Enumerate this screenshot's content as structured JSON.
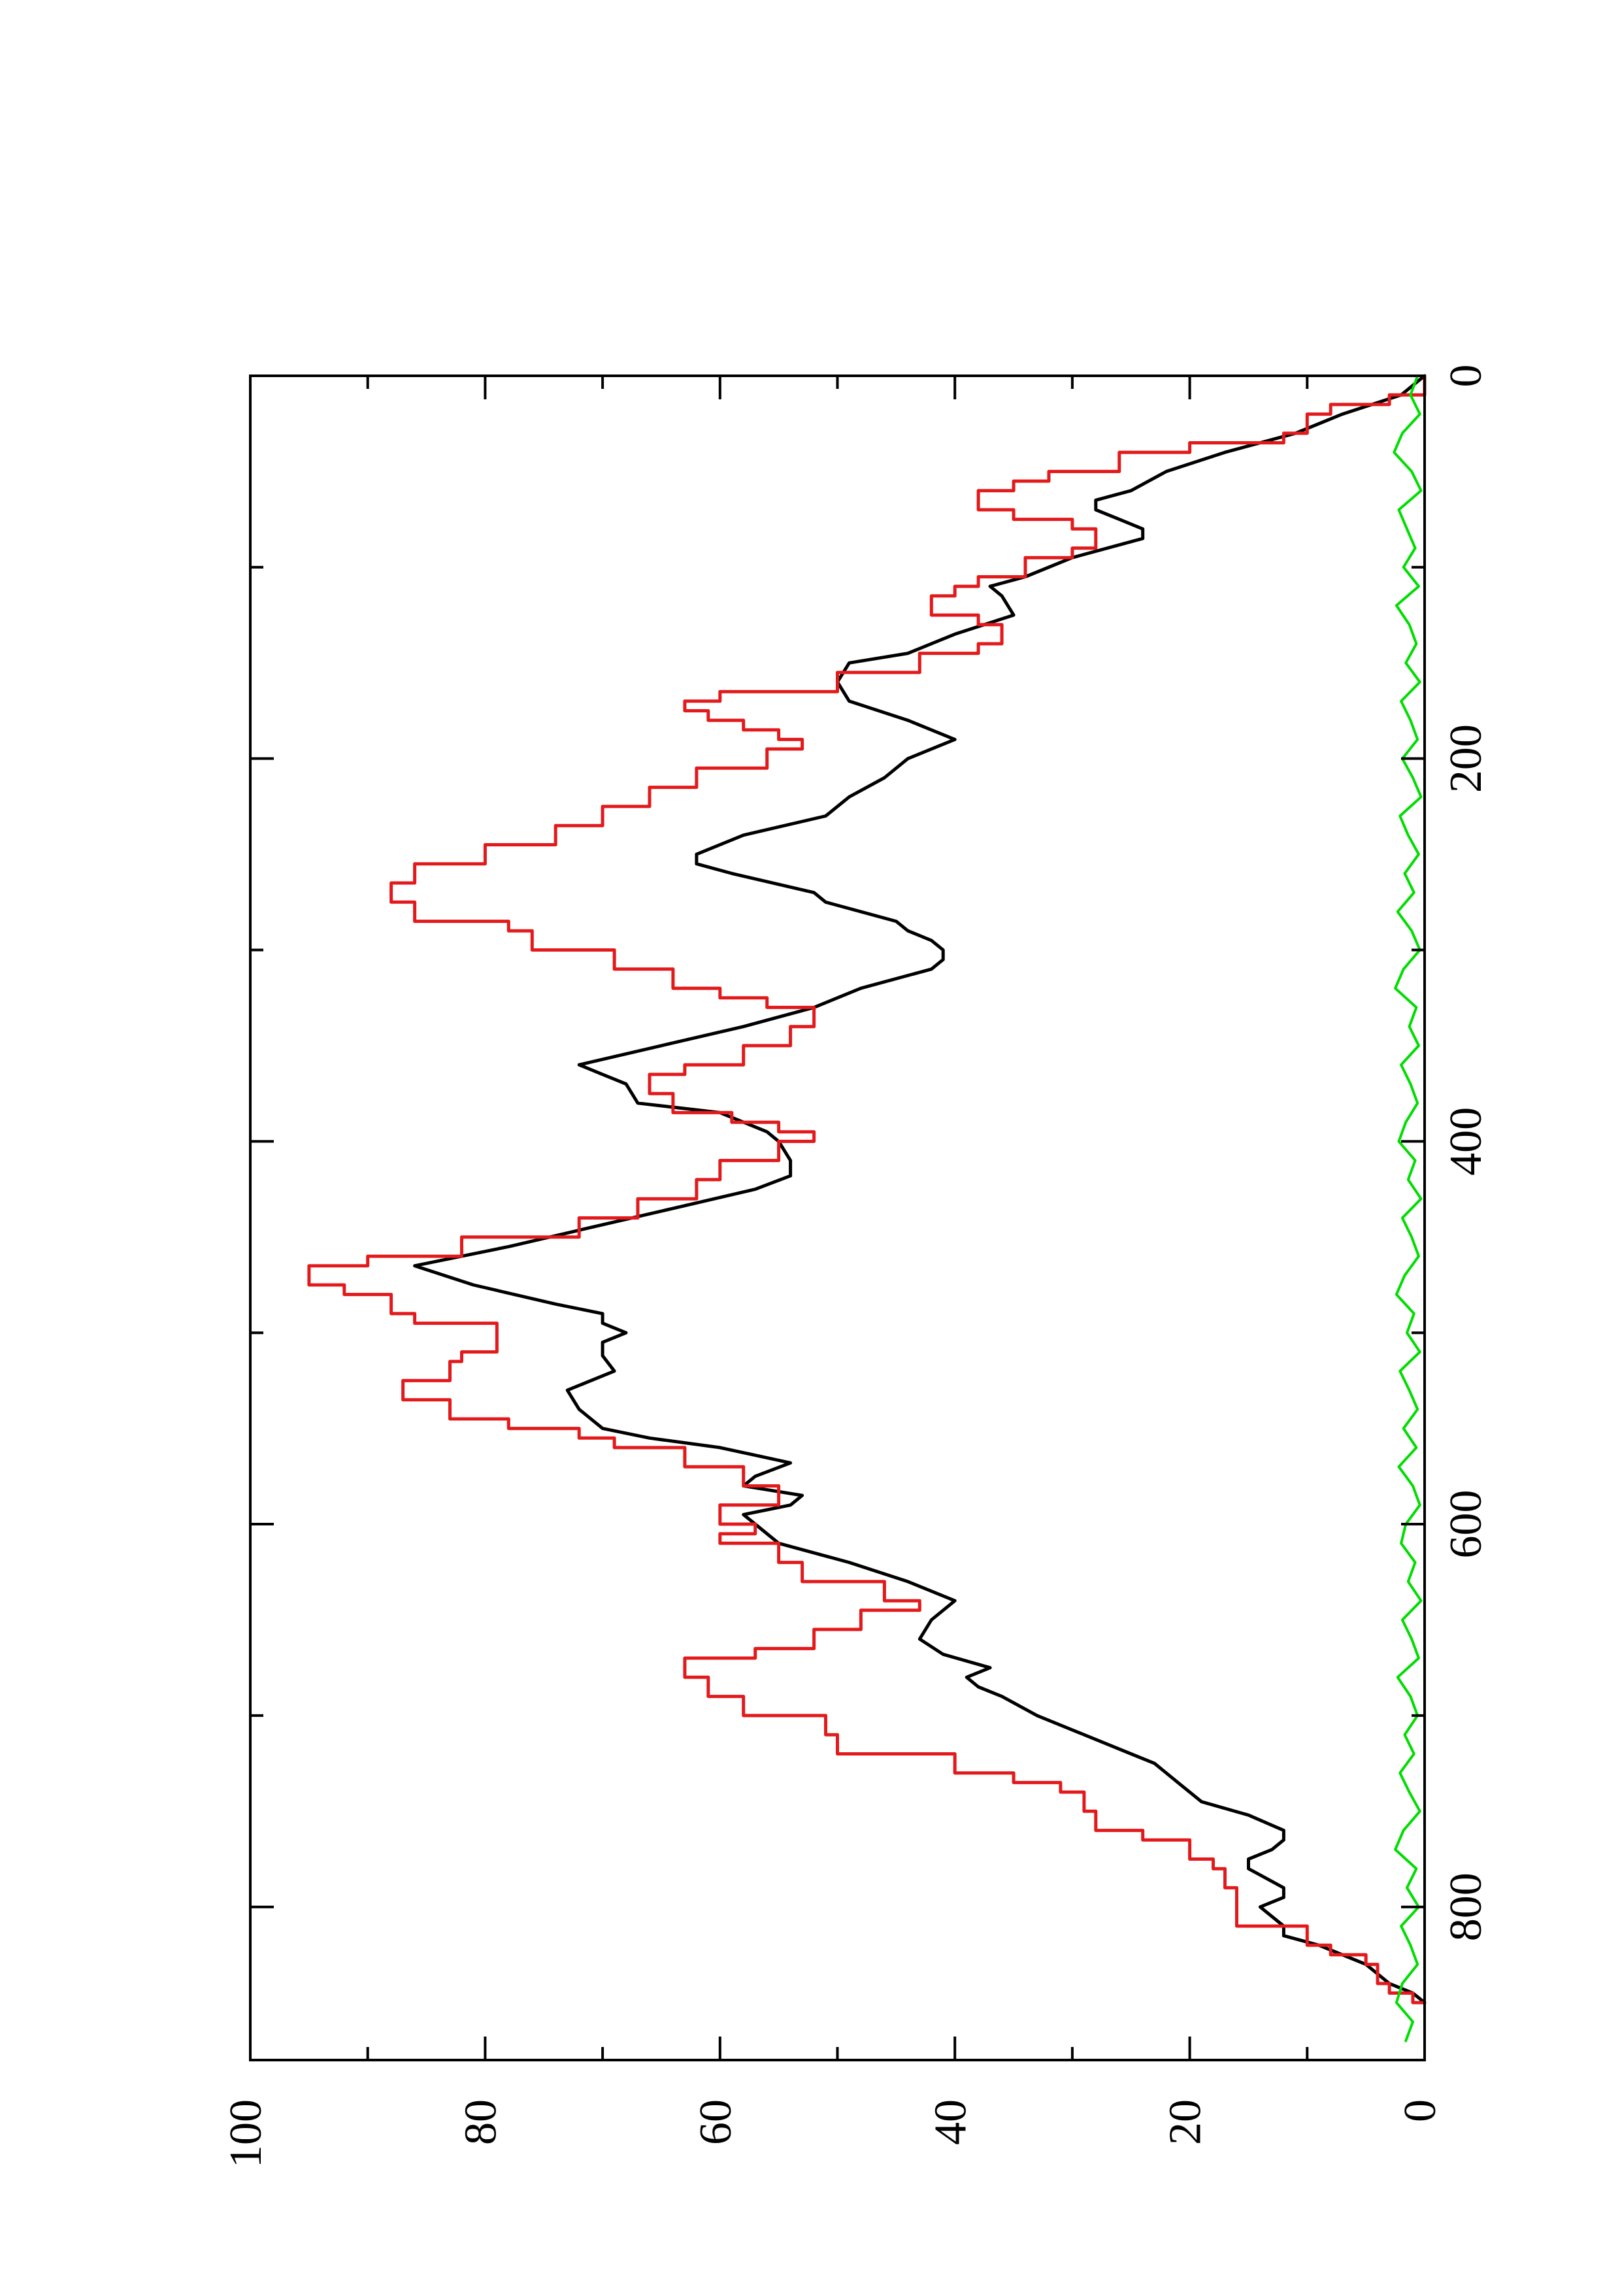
{
  "chart_data": {
    "type": "line",
    "orientation": "rotated-90-ccw",
    "title": "",
    "xlabel": "",
    "ylabel": "",
    "xlim": [
      0,
      880
    ],
    "ylim": [
      0,
      100
    ],
    "x_ticks": [
      0,
      200,
      400,
      600,
      800
    ],
    "x_tick_labels": [
      "0",
      "200",
      "400",
      "600",
      "800"
    ],
    "x_minor_ticks": [
      100,
      300,
      500,
      700
    ],
    "y_ticks": [
      0,
      20,
      40,
      60,
      80,
      100
    ],
    "y_tick_labels": [
      "0",
      "20",
      "40",
      "60",
      "80",
      "100"
    ],
    "y_minor_ticks": [
      10,
      30,
      50,
      70,
      90
    ],
    "grid": false,
    "legend": "none",
    "series": [
      {
        "color": "#000000",
        "style": "smooth",
        "points": [
          [
            0,
            0
          ],
          [
            10,
            2
          ],
          [
            20,
            7
          ],
          [
            30,
            11
          ],
          [
            40,
            17
          ],
          [
            50,
            22
          ],
          [
            60,
            25
          ],
          [
            65,
            28
          ],
          [
            70,
            28
          ],
          [
            75,
            26
          ],
          [
            80,
            24
          ],
          [
            85,
            24
          ],
          [
            95,
            30
          ],
          [
            105,
            34
          ],
          [
            110,
            37
          ],
          [
            115,
            36
          ],
          [
            125,
            35
          ],
          [
            135,
            40
          ],
          [
            145,
            44
          ],
          [
            150,
            49
          ],
          [
            160,
            50
          ],
          [
            170,
            49
          ],
          [
            180,
            44
          ],
          [
            185,
            42
          ],
          [
            190,
            40
          ],
          [
            200,
            44
          ],
          [
            210,
            46
          ],
          [
            220,
            49
          ],
          [
            230,
            51
          ],
          [
            240,
            58
          ],
          [
            250,
            62
          ],
          [
            255,
            62
          ],
          [
            260,
            59
          ],
          [
            270,
            52
          ],
          [
            275,
            51
          ],
          [
            285,
            45
          ],
          [
            290,
            44
          ],
          [
            295,
            42
          ],
          [
            300,
            41
          ],
          [
            305,
            41
          ],
          [
            310,
            42
          ],
          [
            320,
            48
          ],
          [
            330,
            52
          ],
          [
            340,
            58
          ],
          [
            350,
            65
          ],
          [
            360,
            72
          ],
          [
            365,
            70
          ],
          [
            370,
            68
          ],
          [
            380,
            67
          ],
          [
            385,
            60
          ],
          [
            395,
            56
          ],
          [
            400,
            55
          ],
          [
            410,
            54
          ],
          [
            418,
            54
          ],
          [
            425,
            57
          ],
          [
            435,
            64
          ],
          [
            445,
            71
          ],
          [
            455,
            78
          ],
          [
            465,
            86
          ],
          [
            475,
            81
          ],
          [
            485,
            74
          ],
          [
            490,
            70
          ],
          [
            495,
            70
          ],
          [
            500,
            68
          ],
          [
            505,
            70
          ],
          [
            512,
            70
          ],
          [
            520,
            69
          ],
          [
            530,
            73
          ],
          [
            540,
            72
          ],
          [
            550,
            70
          ],
          [
            555,
            66
          ],
          [
            560,
            60
          ],
          [
            568,
            54
          ],
          [
            575,
            57
          ],
          [
            580,
            58
          ],
          [
            585,
            53
          ],
          [
            590,
            54
          ],
          [
            595,
            58
          ],
          [
            600,
            57
          ],
          [
            610,
            55
          ],
          [
            620,
            49
          ],
          [
            630,
            44
          ],
          [
            640,
            40
          ],
          [
            650,
            42
          ],
          [
            660,
            43
          ],
          [
            668,
            41
          ],
          [
            675,
            37
          ],
          [
            680,
            39
          ],
          [
            685,
            38
          ],
          [
            690,
            36
          ],
          [
            700,
            33
          ],
          [
            710,
            29
          ],
          [
            720,
            25
          ],
          [
            725,
            23
          ],
          [
            735,
            21
          ],
          [
            745,
            19
          ],
          [
            752,
            15
          ],
          [
            760,
            12
          ],
          [
            765,
            12
          ],
          [
            770,
            13
          ],
          [
            775,
            15
          ],
          [
            780,
            15
          ],
          [
            790,
            12
          ],
          [
            795,
            12
          ],
          [
            800,
            14
          ],
          [
            810,
            12
          ],
          [
            815,
            12
          ],
          [
            820,
            9
          ],
          [
            830,
            5
          ],
          [
            840,
            3
          ],
          [
            845,
            1
          ],
          [
            850,
            0
          ]
        ]
      },
      {
        "color": "#e31a1c",
        "style": "step",
        "points": [
          [
            0,
            0
          ],
          [
            10,
            3
          ],
          [
            15,
            8
          ],
          [
            20,
            10
          ],
          [
            30,
            12
          ],
          [
            35,
            20
          ],
          [
            40,
            26
          ],
          [
            50,
            32
          ],
          [
            55,
            35
          ],
          [
            60,
            38
          ],
          [
            70,
            35
          ],
          [
            75,
            30
          ],
          [
            80,
            28
          ],
          [
            90,
            30
          ],
          [
            95,
            34
          ],
          [
            105,
            38
          ],
          [
            110,
            40
          ],
          [
            115,
            42
          ],
          [
            125,
            38
          ],
          [
            130,
            36
          ],
          [
            140,
            38
          ],
          [
            145,
            43
          ],
          [
            155,
            50
          ],
          [
            165,
            60
          ],
          [
            170,
            63
          ],
          [
            175,
            61
          ],
          [
            180,
            58
          ],
          [
            185,
            55
          ],
          [
            190,
            53
          ],
          [
            195,
            56
          ],
          [
            205,
            62
          ],
          [
            215,
            66
          ],
          [
            225,
            70
          ],
          [
            235,
            74
          ],
          [
            245,
            80
          ],
          [
            255,
            86
          ],
          [
            265,
            88
          ],
          [
            275,
            86
          ],
          [
            285,
            78
          ],
          [
            290,
            76
          ],
          [
            300,
            69
          ],
          [
            310,
            64
          ],
          [
            320,
            60
          ],
          [
            325,
            56
          ],
          [
            330,
            52
          ],
          [
            340,
            54
          ],
          [
            350,
            58
          ],
          [
            360,
            63
          ],
          [
            365,
            66
          ],
          [
            375,
            64
          ],
          [
            385,
            59
          ],
          [
            390,
            55
          ],
          [
            395,
            52
          ],
          [
            400,
            55
          ],
          [
            410,
            60
          ],
          [
            420,
            62
          ],
          [
            430,
            67
          ],
          [
            440,
            72
          ],
          [
            450,
            82
          ],
          [
            460,
            90
          ],
          [
            465,
            95
          ],
          [
            475,
            92
          ],
          [
            480,
            88
          ],
          [
            490,
            86
          ],
          [
            495,
            79
          ],
          [
            505,
            79
          ],
          [
            510,
            82
          ],
          [
            515,
            83
          ],
          [
            525,
            87
          ],
          [
            535,
            83
          ],
          [
            545,
            78
          ],
          [
            550,
            72
          ],
          [
            555,
            69
          ],
          [
            560,
            63
          ],
          [
            570,
            58
          ],
          [
            580,
            55
          ],
          [
            590,
            60
          ],
          [
            600,
            57
          ],
          [
            605,
            60
          ],
          [
            610,
            55
          ],
          [
            620,
            53
          ],
          [
            630,
            46
          ],
          [
            640,
            43
          ],
          [
            645,
            48
          ],
          [
            655,
            52
          ],
          [
            665,
            57
          ],
          [
            670,
            63
          ],
          [
            680,
            61
          ],
          [
            690,
            58
          ],
          [
            700,
            51
          ],
          [
            710,
            50
          ],
          [
            720,
            40
          ],
          [
            730,
            35
          ],
          [
            735,
            31
          ],
          [
            740,
            29
          ],
          [
            750,
            28
          ],
          [
            760,
            24
          ],
          [
            765,
            20
          ],
          [
            775,
            18
          ],
          [
            780,
            17
          ],
          [
            790,
            16
          ],
          [
            800,
            16
          ],
          [
            810,
            10
          ],
          [
            820,
            8
          ],
          [
            825,
            5
          ],
          [
            830,
            4
          ],
          [
            840,
            3
          ],
          [
            845,
            1
          ],
          [
            850,
            0
          ]
        ]
      },
      {
        "color": "#00dd00",
        "style": "noise",
        "points": [
          [
            0,
            0.6
          ],
          [
            10,
            1.2
          ],
          [
            20,
            0.4
          ],
          [
            30,
            1.9
          ],
          [
            40,
            2.6
          ],
          [
            50,
            1.1
          ],
          [
            60,
            0.3
          ],
          [
            70,
            2.2
          ],
          [
            80,
            1.5
          ],
          [
            90,
            0.8
          ],
          [
            100,
            1.8
          ],
          [
            110,
            0.5
          ],
          [
            120,
            2.4
          ],
          [
            130,
            1.3
          ],
          [
            140,
            0.7
          ],
          [
            150,
            1.6
          ],
          [
            160,
            0.4
          ],
          [
            170,
            2.0
          ],
          [
            180,
            1.2
          ],
          [
            190,
            0.6
          ],
          [
            200,
            1.9
          ],
          [
            210,
            1.0
          ],
          [
            220,
            0.3
          ],
          [
            230,
            2.1
          ],
          [
            240,
            1.4
          ],
          [
            250,
            0.5
          ],
          [
            260,
            1.7
          ],
          [
            270,
            0.9
          ],
          [
            280,
            2.3
          ],
          [
            290,
            1.1
          ],
          [
            300,
            0.4
          ],
          [
            310,
            1.8
          ],
          [
            320,
            2.5
          ],
          [
            330,
            0.7
          ],
          [
            340,
            1.3
          ],
          [
            350,
            0.5
          ],
          [
            360,
            2.0
          ],
          [
            370,
            1.2
          ],
          [
            380,
            0.6
          ],
          [
            390,
            1.6
          ],
          [
            400,
            2.2
          ],
          [
            410,
            0.8
          ],
          [
            420,
            1.4
          ],
          [
            430,
            0.3
          ],
          [
            440,
            1.9
          ],
          [
            450,
            1.1
          ],
          [
            460,
            0.5
          ],
          [
            470,
            1.7
          ],
          [
            480,
            2.4
          ],
          [
            490,
            0.9
          ],
          [
            500,
            1.5
          ],
          [
            510,
            0.4
          ],
          [
            520,
            2.1
          ],
          [
            530,
            1.3
          ],
          [
            540,
            0.6
          ],
          [
            550,
            1.8
          ],
          [
            560,
            0.7
          ],
          [
            570,
            2.2
          ],
          [
            580,
            1.0
          ],
          [
            590,
            0.4
          ],
          [
            600,
            1.6
          ],
          [
            610,
            2.0
          ],
          [
            620,
            0.8
          ],
          [
            630,
            1.4
          ],
          [
            640,
            0.3
          ],
          [
            650,
            1.9
          ],
          [
            660,
            1.1
          ],
          [
            670,
            0.5
          ],
          [
            680,
            2.3
          ],
          [
            690,
            1.2
          ],
          [
            700,
            0.6
          ],
          [
            710,
            1.7
          ],
          [
            720,
            0.9
          ],
          [
            730,
            2.1
          ],
          [
            740,
            1.3
          ],
          [
            750,
            0.4
          ],
          [
            760,
            1.8
          ],
          [
            770,
            2.5
          ],
          [
            780,
            0.7
          ],
          [
            790,
            1.5
          ],
          [
            800,
            0.5
          ],
          [
            810,
            2.0
          ],
          [
            820,
            1.2
          ],
          [
            830,
            0.6
          ],
          [
            840,
            1.9
          ],
          [
            850,
            2.4
          ],
          [
            860,
            1.0
          ],
          [
            870,
            1.6
          ]
        ]
      }
    ]
  }
}
